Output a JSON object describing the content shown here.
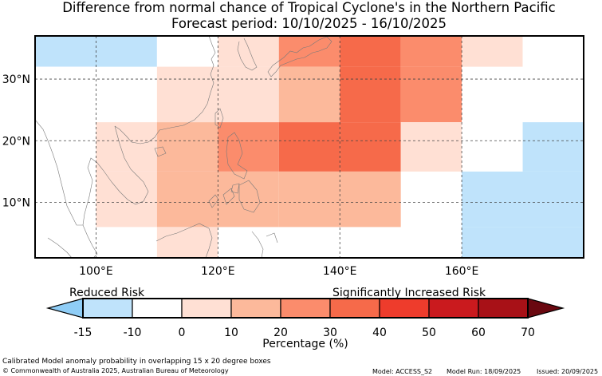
{
  "title_line1": "Difference from normal chance of Tropical Cyclone's in the Northern Pacific",
  "title_line2": "Forecast period: 10/10/2025 - 16/10/2025",
  "map": {
    "lon_range": [
      90,
      180
    ],
    "lat_range": [
      1,
      37
    ],
    "lon_ticks": [
      {
        "value": 100,
        "label": "100°E"
      },
      {
        "value": 120,
        "label": "120°E"
      },
      {
        "value": 140,
        "label": "140°E"
      },
      {
        "value": 160,
        "label": "160°E"
      }
    ],
    "lat_ticks": [
      {
        "value": 10,
        "label": "10°N"
      },
      {
        "value": 20,
        "label": "20°N"
      },
      {
        "value": 30,
        "label": "30°N"
      }
    ],
    "cells": [
      {
        "lon0": 90,
        "lon1": 110,
        "lat0": 32,
        "lat1": 37,
        "pct": -12
      },
      {
        "lon0": 110,
        "lon1": 120,
        "lat0": 32,
        "lat1": 37,
        "pct": -7
      },
      {
        "lon0": 120,
        "lon1": 130,
        "lat0": 32,
        "lat1": 37,
        "pct": 5
      },
      {
        "lon0": 130,
        "lon1": 140,
        "lat0": 32,
        "lat1": 37,
        "pct": 25
      },
      {
        "lon0": 140,
        "lon1": 150,
        "lat0": 32,
        "lat1": 37,
        "pct": 35
      },
      {
        "lon0": 150,
        "lon1": 160,
        "lat0": 32,
        "lat1": 37,
        "pct": 25
      },
      {
        "lon0": 160,
        "lon1": 170,
        "lat0": 32,
        "lat1": 37,
        "pct": 5
      },
      {
        "lon0": 170,
        "lon1": 180,
        "lat0": 32,
        "lat1": 37,
        "pct": -7
      },
      {
        "lon0": 90,
        "lon1": 100,
        "lat0": 23,
        "lat1": 32,
        "pct": -7
      },
      {
        "lon0": 110,
        "lon1": 120,
        "lat0": 23,
        "lat1": 32,
        "pct": 5
      },
      {
        "lon0": 120,
        "lon1": 130,
        "lat0": 23,
        "lat1": 32,
        "pct": 5
      },
      {
        "lon0": 130,
        "lon1": 140,
        "lat0": 23,
        "lat1": 32,
        "pct": 15
      },
      {
        "lon0": 140,
        "lon1": 150,
        "lat0": 23,
        "lat1": 32,
        "pct": 35
      },
      {
        "lon0": 150,
        "lon1": 160,
        "lat0": 23,
        "lat1": 32,
        "pct": 25
      },
      {
        "lon0": 170,
        "lon1": 180,
        "lat0": 23,
        "lat1": 32,
        "pct": -7
      },
      {
        "lon0": 100,
        "lon1": 110,
        "lat0": 15,
        "lat1": 23,
        "pct": 5
      },
      {
        "lon0": 110,
        "lon1": 120,
        "lat0": 15,
        "lat1": 23,
        "pct": 15
      },
      {
        "lon0": 120,
        "lon1": 130,
        "lat0": 15,
        "lat1": 23,
        "pct": 25
      },
      {
        "lon0": 130,
        "lon1": 140,
        "lat0": 15,
        "lat1": 23,
        "pct": 35
      },
      {
        "lon0": 140,
        "lon1": 150,
        "lat0": 15,
        "lat1": 23,
        "pct": 35
      },
      {
        "lon0": 150,
        "lon1": 160,
        "lat0": 15,
        "lat1": 23,
        "pct": 5
      },
      {
        "lon0": 160,
        "lon1": 170,
        "lat0": 15,
        "lat1": 23,
        "pct": -7
      },
      {
        "lon0": 170,
        "lon1": 180,
        "lat0": 15,
        "lat1": 23,
        "pct": -12
      },
      {
        "lon0": 100,
        "lon1": 110,
        "lat0": 6,
        "lat1": 15,
        "pct": 5
      },
      {
        "lon0": 110,
        "lon1": 120,
        "lat0": 6,
        "lat1": 15,
        "pct": 15
      },
      {
        "lon0": 120,
        "lon1": 130,
        "lat0": 6,
        "lat1": 15,
        "pct": 15
      },
      {
        "lon0": 130,
        "lon1": 140,
        "lat0": 6,
        "lat1": 15,
        "pct": 15
      },
      {
        "lon0": 140,
        "lon1": 150,
        "lat0": 6,
        "lat1": 15,
        "pct": 15
      },
      {
        "lon0": 160,
        "lon1": 180,
        "lat0": 6,
        "lat1": 15,
        "pct": -12
      },
      {
        "lon0": 110,
        "lon1": 120,
        "lat0": 1,
        "lat1": 6,
        "pct": 5
      },
      {
        "lon0": 150,
        "lon1": 160,
        "lat0": 1,
        "lat1": 6,
        "pct": -7
      },
      {
        "lon0": 160,
        "lon1": 180,
        "lat0": 1,
        "lat1": 6,
        "pct": -12
      }
    ]
  },
  "colorbar": {
    "label_low": "Reduced Risk",
    "label_high": "Significantly Increased Risk",
    "xlabel": "Percentage (%)",
    "ticks": [
      "-15",
      "-10",
      "0",
      "10",
      "20",
      "30",
      "40",
      "50",
      "60",
      "70"
    ],
    "under_color": "#8fcdf6",
    "colors": [
      "#bfe3fb",
      "#ffffff",
      "#ffe0d4",
      "#fcb99b",
      "#fb8c6c",
      "#f66a4a",
      "#ee3c2c",
      "#ca1a1e",
      "#a81117"
    ],
    "over_color": "#6a0810"
  },
  "footer": {
    "description": "Calibrated Model anomaly probability in overlapping 15 x 20 degree boxes",
    "copyright": "© Commonwealth of Australia 2025, Australian Bureau of Meteorology",
    "model": "Model: ACCESS_S2",
    "model_run": "Model Run: 18/09/2025",
    "issued": "Issued: 20/09/2025"
  }
}
